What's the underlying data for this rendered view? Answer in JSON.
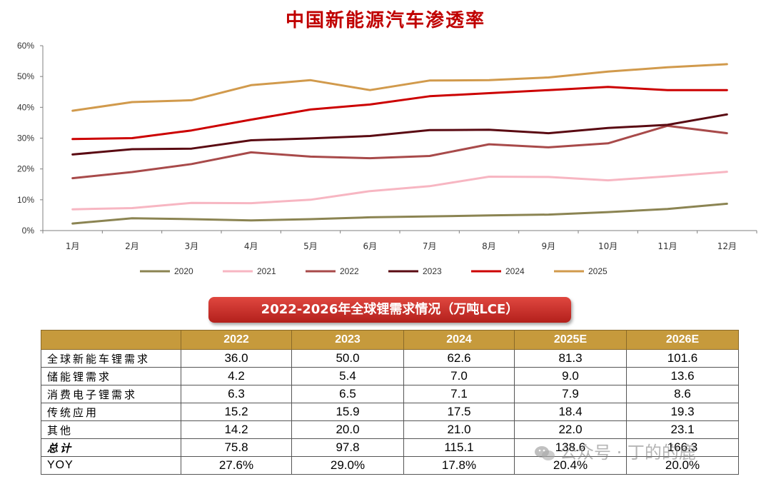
{
  "chart_data": {
    "type": "line",
    "title": "中国新能源汽车渗透率",
    "categories": [
      "1月",
      "2月",
      "3月",
      "4月",
      "5月",
      "6月",
      "7月",
      "8月",
      "9月",
      "10月",
      "11月",
      "12月"
    ],
    "y_ticks": [
      "0%",
      "10%",
      "20%",
      "30%",
      "40%",
      "50%",
      "60%"
    ],
    "ylim": [
      0,
      60
    ],
    "grid": false,
    "legend_position": "bottom",
    "series": [
      {
        "name": "2020",
        "color": "#8b8452",
        "values": [
          2.3,
          4.0,
          3.7,
          3.3,
          3.7,
          4.3,
          4.6,
          4.9,
          5.2,
          6.0,
          7.0,
          8.7
        ]
      },
      {
        "name": "2021",
        "color": "#f7b6c2",
        "values": [
          6.9,
          7.3,
          9.0,
          8.9,
          10.0,
          12.8,
          14.4,
          17.5,
          17.4,
          16.3,
          17.6,
          19.1
        ]
      },
      {
        "name": "2022",
        "color": "#a84a4a",
        "values": [
          17.0,
          19.0,
          21.6,
          25.4,
          24.0,
          23.5,
          24.2,
          28.0,
          27.0,
          28.3,
          34.0,
          31.6
        ]
      },
      {
        "name": "2023",
        "color": "#5a0a12",
        "values": [
          24.7,
          26.4,
          26.6,
          29.3,
          29.9,
          30.7,
          32.6,
          32.7,
          31.6,
          33.3,
          34.3,
          37.7
        ]
      },
      {
        "name": "2024",
        "color": "#cc0000",
        "values": [
          29.7,
          30.0,
          32.5,
          36.0,
          39.3,
          40.9,
          43.6,
          44.6,
          45.6,
          46.6,
          45.6,
          45.6
        ]
      },
      {
        "name": "2025",
        "color": "#d19a4c",
        "values": [
          38.9,
          41.7,
          42.3,
          47.2,
          48.8,
          45.6,
          48.7,
          48.8,
          49.7,
          51.6,
          53.0,
          54.0
        ]
      }
    ]
  },
  "table": {
    "banner": "2022-2026年全球锂需求情况（万吨LCE）",
    "columns": [
      "",
      "2022",
      "2023",
      "2024",
      "2025E",
      "2026E"
    ],
    "rows": [
      {
        "label": "全球新能车锂需求",
        "values": [
          "36.0",
          "50.0",
          "62.6",
          "81.3",
          "101.6"
        ]
      },
      {
        "label": "储能锂需求",
        "values": [
          "4.2",
          "5.4",
          "7.0",
          "9.0",
          "13.6"
        ]
      },
      {
        "label": "消费电子锂需求",
        "values": [
          "6.3",
          "6.5",
          "7.1",
          "7.9",
          "8.6"
        ]
      },
      {
        "label": "传统应用",
        "values": [
          "15.2",
          "15.9",
          "17.5",
          "18.4",
          "19.3"
        ]
      },
      {
        "label": "其他",
        "values": [
          "14.2",
          "20.0",
          "21.0",
          "22.0",
          "23.1"
        ]
      },
      {
        "label": "总计",
        "values": [
          "75.8",
          "97.8",
          "115.1",
          "138.6",
          "166.3"
        ]
      },
      {
        "label": "YOY",
        "values": [
          "27.6%",
          "29.0%",
          "17.8%",
          "20.4%",
          "20.0%"
        ]
      }
    ]
  },
  "watermark": {
    "text": "公众号 · 丁的的鹿",
    "icon": "wechat-icon"
  }
}
